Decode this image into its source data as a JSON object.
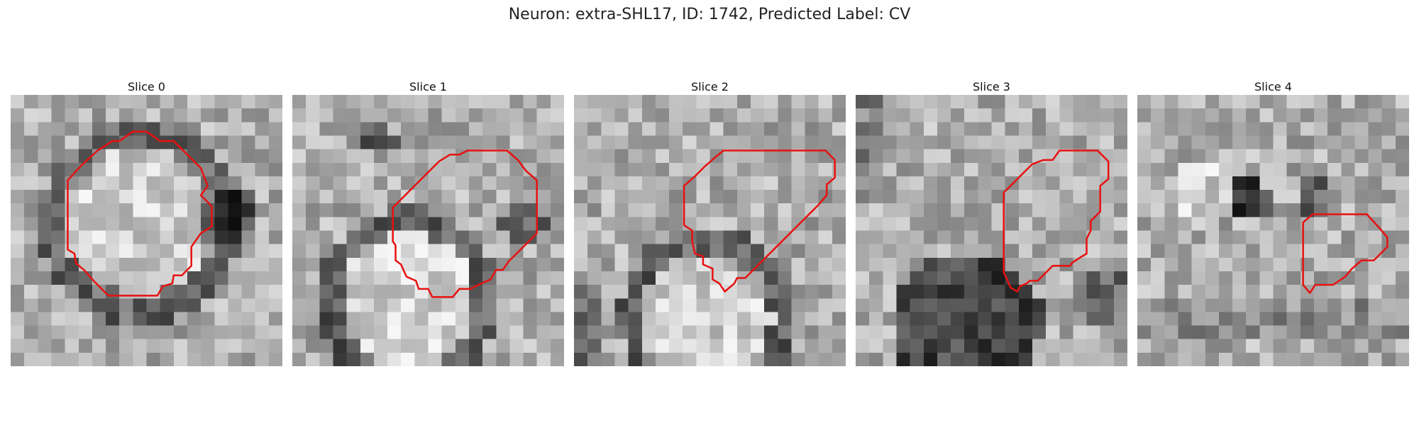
{
  "figure": {
    "title": "Neuron: extra-SHL17, ID: 1742, Predicted Label: CV"
  },
  "contour_color": "#e81010",
  "slices": [
    {
      "title": "Slice 0",
      "pattern": "ring-center",
      "contour": [
        [
          8,
          3.4
        ],
        [
          9,
          2.7
        ],
        [
          10,
          2.7
        ],
        [
          11,
          3.4
        ],
        [
          12,
          3.4
        ],
        [
          13,
          4.4
        ],
        [
          14,
          5.4
        ],
        [
          14.5,
          6.7
        ],
        [
          14,
          7.4
        ],
        [
          14.8,
          8.2
        ],
        [
          14.8,
          9.7
        ],
        [
          14,
          10.2
        ],
        [
          13.3,
          11.2
        ],
        [
          13.3,
          12.6
        ],
        [
          12.6,
          13.3
        ],
        [
          12,
          13.3
        ],
        [
          11.9,
          13.9
        ],
        [
          11.2,
          14.1
        ],
        [
          10.8,
          14.8
        ],
        [
          9.7,
          14.8
        ],
        [
          8.3,
          14.8
        ],
        [
          7.2,
          14.8
        ],
        [
          6.2,
          13.8
        ],
        [
          5.4,
          12.9
        ],
        [
          4.8,
          12.4
        ],
        [
          4.7,
          11.7
        ],
        [
          4.2,
          11.4
        ],
        [
          4.2,
          9.8
        ],
        [
          4.2,
          7.9
        ],
        [
          4.2,
          6.3
        ],
        [
          5.2,
          5.2
        ],
        [
          6.4,
          4.1
        ],
        [
          7.5,
          3.4
        ]
      ]
    },
    {
      "title": "Slice 1",
      "pattern": "blob-bottom",
      "contour": [
        [
          13.3,
          4.1
        ],
        [
          14,
          4.1
        ],
        [
          15.8,
          4.1
        ],
        [
          16.6,
          4.8
        ],
        [
          17.2,
          5.6
        ],
        [
          18,
          6.3
        ],
        [
          18,
          8.8
        ],
        [
          18,
          10.2
        ],
        [
          16.8,
          11.4
        ],
        [
          15.9,
          12.3
        ],
        [
          15.5,
          12.9
        ],
        [
          15,
          12.9
        ],
        [
          14.6,
          13.6
        ],
        [
          13.9,
          13.9
        ],
        [
          13.1,
          14.3
        ],
        [
          12.3,
          14.3
        ],
        [
          11.8,
          14.9
        ],
        [
          11.2,
          14.9
        ],
        [
          10.3,
          14.9
        ],
        [
          10,
          14.3
        ],
        [
          9.3,
          14.3
        ],
        [
          9.1,
          13.7
        ],
        [
          8.4,
          13.4
        ],
        [
          8,
          12.5
        ],
        [
          7.6,
          12.2
        ],
        [
          7.6,
          11.1
        ],
        [
          7.4,
          10.8
        ],
        [
          7.4,
          9.9
        ],
        [
          7.4,
          8.3
        ],
        [
          8.3,
          7.4
        ],
        [
          9,
          6.7
        ],
        [
          10,
          5.7
        ],
        [
          10.8,
          4.9
        ],
        [
          11.6,
          4.4
        ],
        [
          12.3,
          4.4
        ],
        [
          12.9,
          4.1
        ]
      ]
    },
    {
      "title": "Slice 2",
      "pattern": "ring-bottom",
      "contour": [
        [
          12.9,
          4.1
        ],
        [
          13.8,
          4.1
        ],
        [
          18.5,
          4.1
        ],
        [
          19.2,
          4.8
        ],
        [
          19.2,
          6.1
        ],
        [
          18.6,
          6.6
        ],
        [
          18.6,
          7.4
        ],
        [
          18,
          8.1
        ],
        [
          17.3,
          8.8
        ],
        [
          16.1,
          10
        ],
        [
          15,
          11.1
        ],
        [
          14.2,
          11.9
        ],
        [
          13.3,
          12.8
        ],
        [
          12.6,
          13.5
        ],
        [
          12,
          13.5
        ],
        [
          11.8,
          13.9
        ],
        [
          11.1,
          14.5
        ],
        [
          10.7,
          13.9
        ],
        [
          10.2,
          13.6
        ],
        [
          10.2,
          12.8
        ],
        [
          9.5,
          12.5
        ],
        [
          9.5,
          11.9
        ],
        [
          8.9,
          11.7
        ],
        [
          8.7,
          10.8
        ],
        [
          8.7,
          10
        ],
        [
          8.1,
          9.6
        ],
        [
          8.1,
          8.2
        ],
        [
          8.1,
          6.7
        ],
        [
          8.9,
          6
        ],
        [
          9.6,
          5.3
        ],
        [
          10.4,
          4.6
        ],
        [
          11,
          4.1
        ]
      ]
    },
    {
      "title": "Slice 3",
      "pattern": "dark-bottom",
      "contour": [
        [
          14.5,
          4.8
        ],
        [
          15,
          4.1
        ],
        [
          17,
          4.1
        ],
        [
          17.8,
          4.1
        ],
        [
          18.6,
          4.9
        ],
        [
          18.6,
          6.2
        ],
        [
          18,
          6.7
        ],
        [
          18,
          8.6
        ],
        [
          17.3,
          9.3
        ],
        [
          17.3,
          10
        ],
        [
          17,
          10.6
        ],
        [
          17,
          11.7
        ],
        [
          16.5,
          12
        ],
        [
          15.9,
          12.4
        ],
        [
          15.8,
          12.6
        ],
        [
          14.5,
          12.6
        ],
        [
          14.1,
          13
        ],
        [
          13.4,
          13.7
        ],
        [
          12.8,
          13.7
        ],
        [
          12.6,
          13.9
        ],
        [
          12.1,
          14.1
        ],
        [
          11.9,
          14.5
        ],
        [
          11.4,
          14.2
        ],
        [
          11.1,
          13.5
        ],
        [
          10.9,
          13.1
        ],
        [
          10.9,
          10.4
        ],
        [
          10.9,
          8.7
        ],
        [
          10.9,
          7.2
        ],
        [
          11.7,
          6.4
        ],
        [
          12.4,
          5.7
        ],
        [
          13,
          5.1
        ],
        [
          13.8,
          4.8
        ]
      ]
    },
    {
      "title": "Slice 4",
      "pattern": "speckle",
      "contour": [
        [
          12.9,
          8.8
        ],
        [
          16.9,
          8.8
        ],
        [
          17.8,
          9.8
        ],
        [
          18.4,
          10.5
        ],
        [
          18.4,
          11.2
        ],
        [
          17.4,
          12.2
        ],
        [
          16.5,
          12.2
        ],
        [
          15.8,
          12.8
        ],
        [
          15.3,
          13.4
        ],
        [
          14.4,
          14
        ],
        [
          13.8,
          14
        ],
        [
          13.1,
          14
        ],
        [
          12.7,
          14.6
        ],
        [
          12.2,
          14
        ],
        [
          12.2,
          13.3
        ],
        [
          12.2,
          12.5
        ],
        [
          12.2,
          10.2
        ],
        [
          12.2,
          9.4
        ]
      ]
    }
  ]
}
